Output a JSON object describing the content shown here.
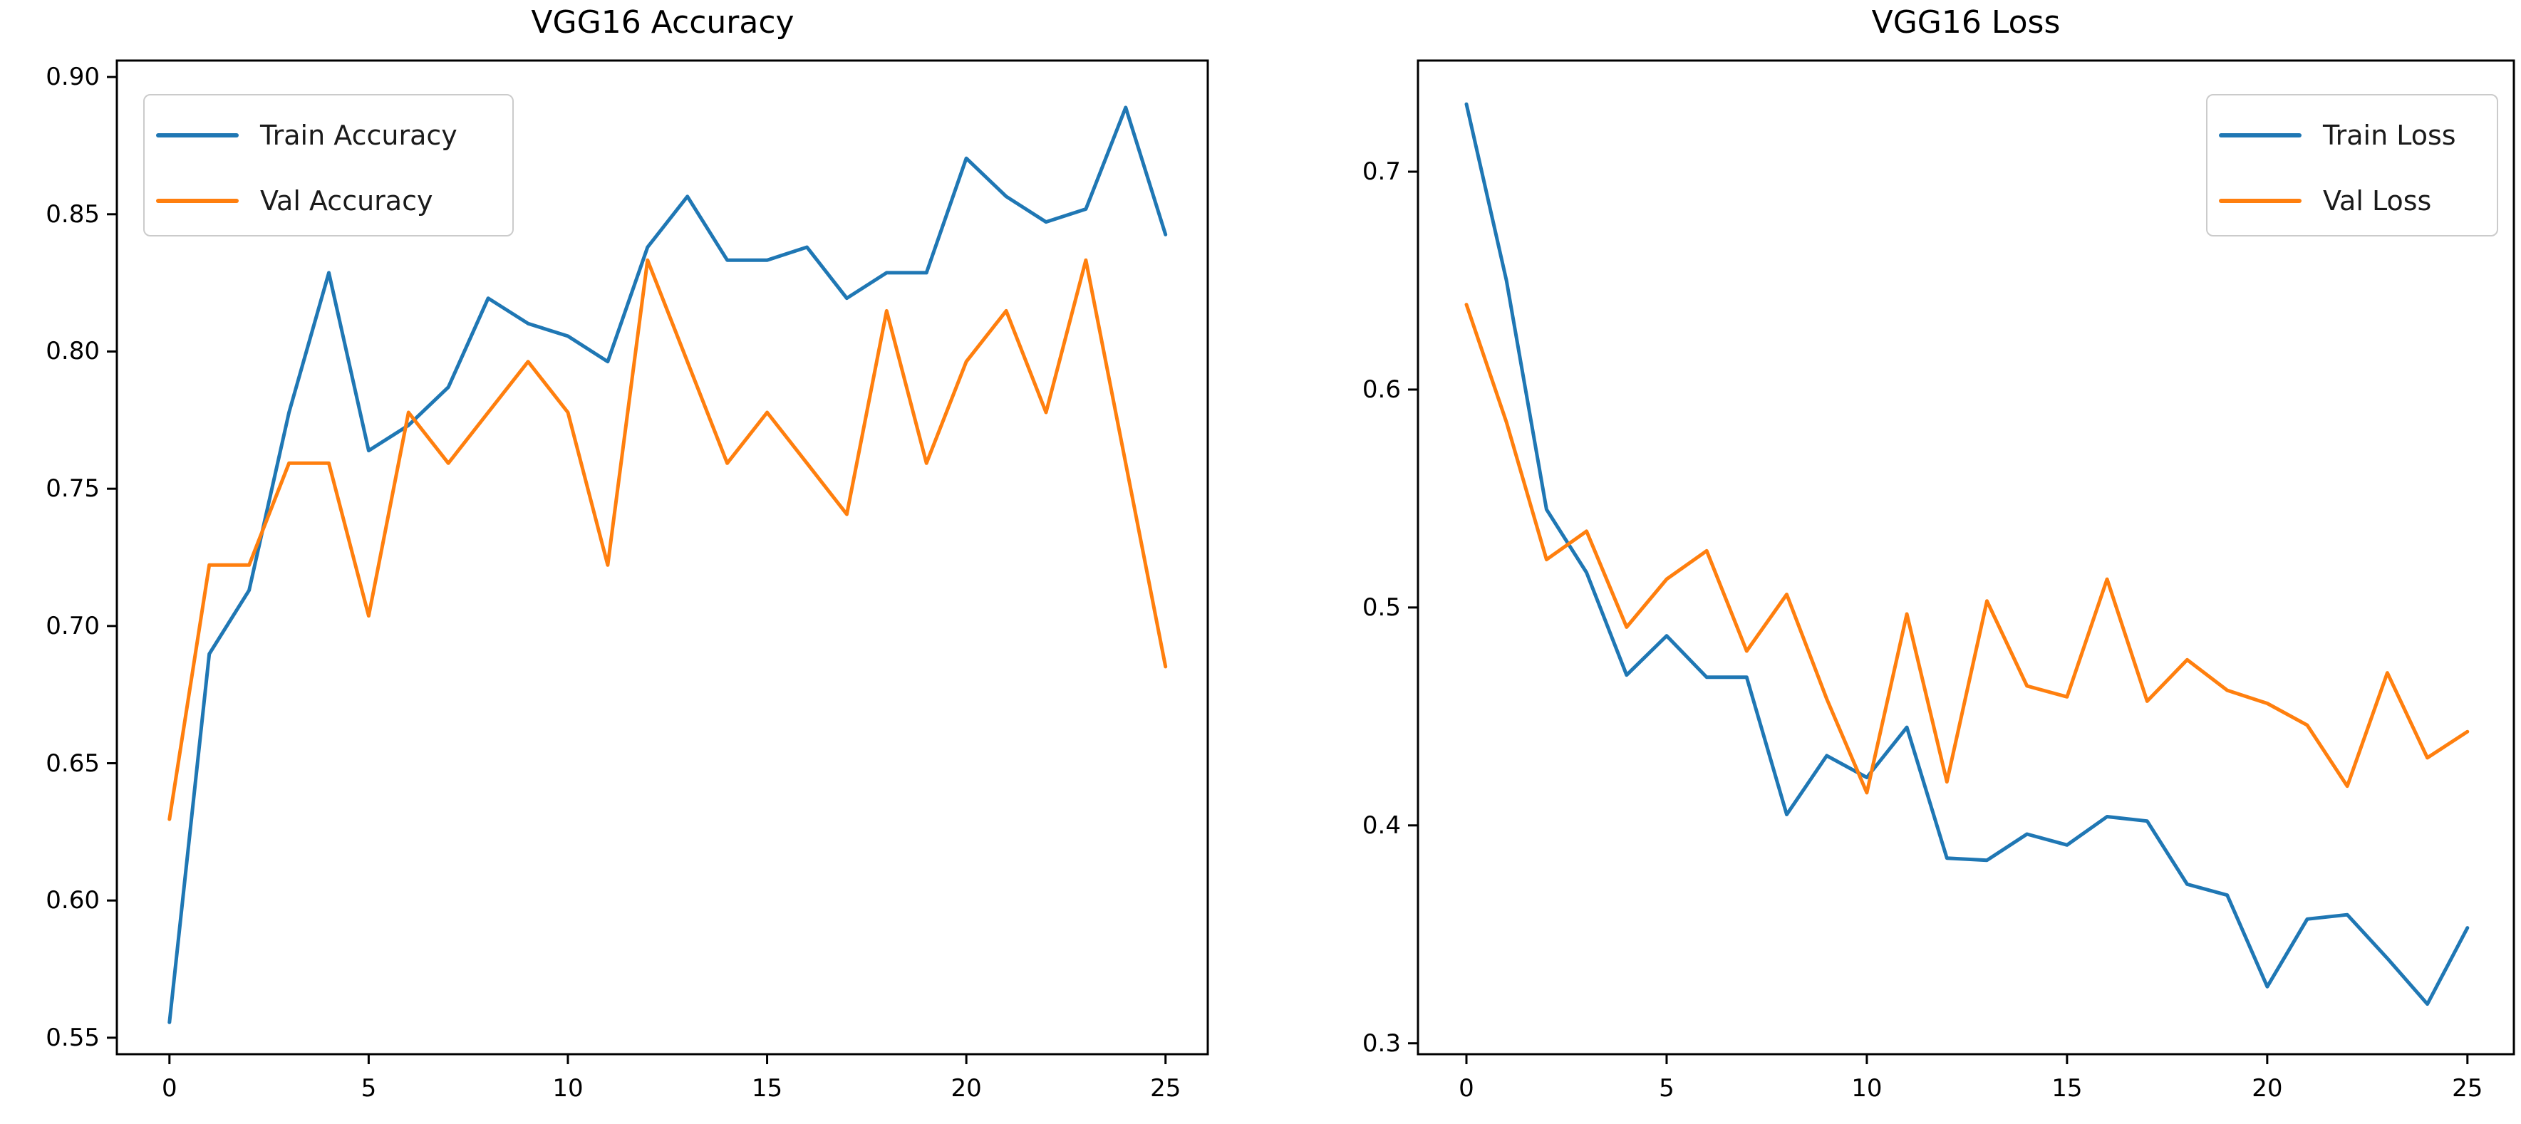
{
  "page": {
    "background": "#ffffff"
  },
  "chart_data": [
    {
      "type": "line",
      "title": "VGG16 Accuracy",
      "xlabel": "",
      "ylabel": "",
      "grid": false,
      "legend_position": "upper left",
      "xlim": [
        -1.32,
        26.06
      ],
      "ylim": [
        0.544,
        0.906
      ],
      "x": [
        0,
        1,
        2,
        3,
        4,
        5,
        6,
        7,
        8,
        9,
        10,
        11,
        12,
        13,
        14,
        15,
        16,
        17,
        18,
        19,
        20,
        21,
        22,
        23,
        24,
        25
      ],
      "x_ticks": [
        {
          "value": 0,
          "label": "0"
        },
        {
          "value": 5,
          "label": "5"
        },
        {
          "value": 10,
          "label": "10"
        },
        {
          "value": 15,
          "label": "15"
        },
        {
          "value": 20,
          "label": "20"
        },
        {
          "value": 25,
          "label": "25"
        }
      ],
      "y_ticks": [
        {
          "value": 0.55,
          "label": "0.55"
        },
        {
          "value": 0.6,
          "label": "0.60"
        },
        {
          "value": 0.65,
          "label": "0.65"
        },
        {
          "value": 0.7,
          "label": "0.70"
        },
        {
          "value": 0.75,
          "label": "0.75"
        },
        {
          "value": 0.8,
          "label": "0.80"
        },
        {
          "value": 0.85,
          "label": "0.85"
        },
        {
          "value": 0.9,
          "label": "0.90"
        }
      ],
      "series": [
        {
          "name": "Train Accuracy",
          "color": "#1f77b4",
          "values": [
            0.5556,
            0.6898,
            0.713,
            0.7778,
            0.8287,
            0.7639,
            0.7731,
            0.787,
            0.8194,
            0.8102,
            0.8056,
            0.7963,
            0.838,
            0.8565,
            0.8333,
            0.8333,
            0.838,
            0.8194,
            0.8287,
            0.8287,
            0.8704,
            0.8565,
            0.8472,
            0.8519,
            0.8889,
            0.8426
          ]
        },
        {
          "name": "Val Accuracy",
          "color": "#ff7f0e",
          "values": [
            0.6296,
            0.7222,
            0.7222,
            0.7593,
            0.7593,
            0.7037,
            0.7778,
            0.7593,
            0.7778,
            0.7963,
            0.7778,
            0.7222,
            0.8333,
            0.7963,
            0.7593,
            0.7778,
            0.7593,
            0.7407,
            0.8148,
            0.7593,
            0.7963,
            0.8148,
            0.7778,
            0.8333,
            0.7593,
            0.6852
          ]
        }
      ]
    },
    {
      "type": "line",
      "title": "VGG16 Loss",
      "xlabel": "",
      "ylabel": "",
      "grid": false,
      "legend_position": "upper right",
      "xlim": [
        -1.21,
        26.16
      ],
      "ylim": [
        0.295,
        0.751
      ],
      "x": [
        0,
        1,
        2,
        3,
        4,
        5,
        6,
        7,
        8,
        9,
        10,
        11,
        12,
        13,
        14,
        15,
        16,
        17,
        18,
        19,
        20,
        21,
        22,
        23,
        24,
        25
      ],
      "x_ticks": [
        {
          "value": 0,
          "label": "0"
        },
        {
          "value": 5,
          "label": "5"
        },
        {
          "value": 10,
          "label": "10"
        },
        {
          "value": 15,
          "label": "15"
        },
        {
          "value": 20,
          "label": "20"
        },
        {
          "value": 25,
          "label": "25"
        }
      ],
      "y_ticks": [
        {
          "value": 0.3,
          "label": "0.3"
        },
        {
          "value": 0.4,
          "label": "0.4"
        },
        {
          "value": 0.5,
          "label": "0.5"
        },
        {
          "value": 0.6,
          "label": "0.6"
        },
        {
          "value": 0.7,
          "label": "0.7"
        }
      ],
      "series": [
        {
          "name": "Train Loss",
          "color": "#1f77b4",
          "values": [
            0.731,
            0.65,
            0.545,
            0.516,
            0.469,
            0.487,
            0.468,
            0.468,
            0.405,
            0.432,
            0.422,
            0.445,
            0.385,
            0.384,
            0.396,
            0.391,
            0.404,
            0.402,
            0.373,
            0.368,
            0.326,
            0.357,
            0.359,
            0.339,
            0.318,
            0.353
          ]
        },
        {
          "name": "Val Loss",
          "color": "#ff7f0e",
          "values": [
            0.639,
            0.585,
            0.522,
            0.535,
            0.491,
            0.513,
            0.526,
            0.48,
            0.506,
            0.458,
            0.415,
            0.497,
            0.42,
            0.503,
            0.464,
            0.459,
            0.513,
            0.457,
            0.476,
            0.462,
            0.456,
            0.446,
            0.418,
            0.47,
            0.431,
            0.443
          ]
        }
      ]
    }
  ]
}
